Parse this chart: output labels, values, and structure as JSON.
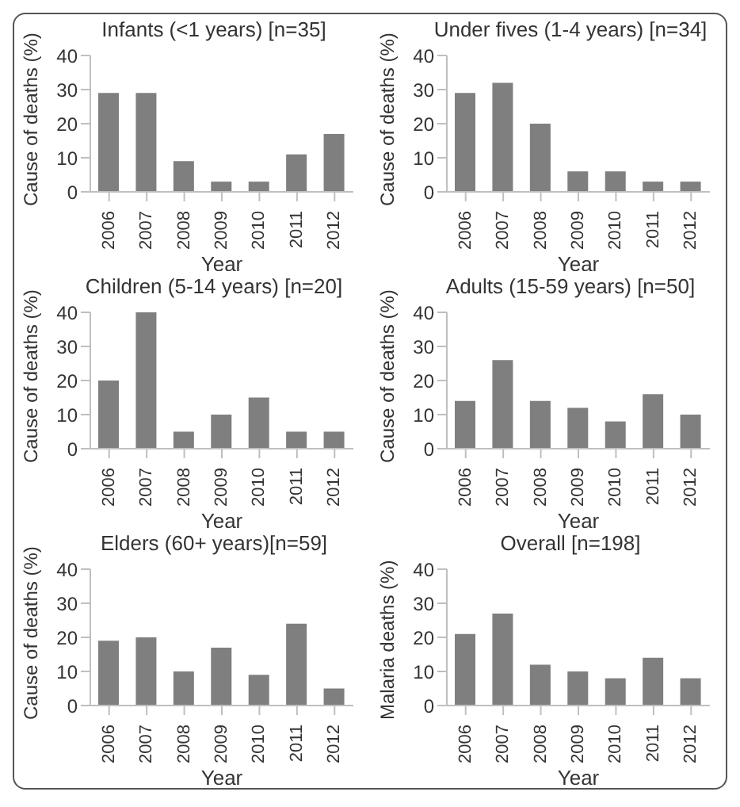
{
  "chart_data": [
    {
      "type": "bar",
      "title": "Infants (<1 years) [n=35]",
      "xlabel": "Year",
      "ylabel": "Cause of deaths (%)",
      "categories": [
        "2006",
        "2007",
        "2008",
        "2009",
        "2010",
        "2011",
        "2012"
      ],
      "values": [
        29,
        29,
        9,
        3,
        3,
        11,
        17
      ],
      "color": "#7f7f7f",
      "ylim": [
        0,
        40
      ],
      "yticks": [
        0,
        10,
        20,
        30,
        40
      ],
      "grid": false
    },
    {
      "type": "bar",
      "title": "Under fives (1-4 years) [n=34]",
      "xlabel": "Year",
      "ylabel": "Cause of deaths (%)",
      "categories": [
        "2006",
        "2007",
        "2008",
        "2009",
        "2010",
        "2011",
        "2012"
      ],
      "values": [
        29,
        32,
        20,
        6,
        6,
        3,
        3
      ],
      "color": "#7f7f7f",
      "ylim": [
        0,
        40
      ],
      "yticks": [
        0,
        10,
        20,
        30,
        40
      ],
      "grid": false
    },
    {
      "type": "bar",
      "title": "Children (5-14 years) [n=20]",
      "xlabel": "Year",
      "ylabel": "Cause of deaths (%)",
      "categories": [
        "2006",
        "2007",
        "2008",
        "2009",
        "2010",
        "2011",
        "2012"
      ],
      "values": [
        20,
        40,
        5,
        10,
        15,
        5,
        5
      ],
      "color": "#7f7f7f",
      "ylim": [
        0,
        40
      ],
      "yticks": [
        0,
        10,
        20,
        30,
        40
      ],
      "grid": false
    },
    {
      "type": "bar",
      "title": "Adults (15-59 years) [n=50]",
      "xlabel": "Year",
      "ylabel": "Cause of deaths (%)",
      "categories": [
        "2006",
        "2007",
        "2008",
        "2009",
        "2010",
        "2011",
        "2012"
      ],
      "values": [
        14,
        26,
        14,
        12,
        8,
        16,
        10
      ],
      "color": "#7f7f7f",
      "ylim": [
        0,
        40
      ],
      "yticks": [
        0,
        10,
        20,
        30,
        40
      ],
      "grid": false
    },
    {
      "type": "bar",
      "title": "Elders (60+ years)[n=59]",
      "xlabel": "Year",
      "ylabel": "Cause of deaths (%)",
      "categories": [
        "2006",
        "2007",
        "2008",
        "2009",
        "2010",
        "2011",
        "2012"
      ],
      "values": [
        19,
        20,
        10,
        17,
        9,
        24,
        5
      ],
      "color": "#7f7f7f",
      "ylim": [
        0,
        40
      ],
      "yticks": [
        0,
        10,
        20,
        30,
        40
      ],
      "grid": false
    },
    {
      "type": "bar",
      "title": "Overall [n=198]",
      "xlabel": "Year",
      "ylabel": "Malaria deaths (%)",
      "categories": [
        "2006",
        "2007",
        "2008",
        "2009",
        "2010",
        "2011",
        "2012"
      ],
      "values": [
        21,
        27,
        12,
        10,
        8,
        14,
        8
      ],
      "color": "#7f7f7f",
      "ylim": [
        0,
        40
      ],
      "yticks": [
        0,
        10,
        20,
        30,
        40
      ],
      "grid": false
    }
  ]
}
